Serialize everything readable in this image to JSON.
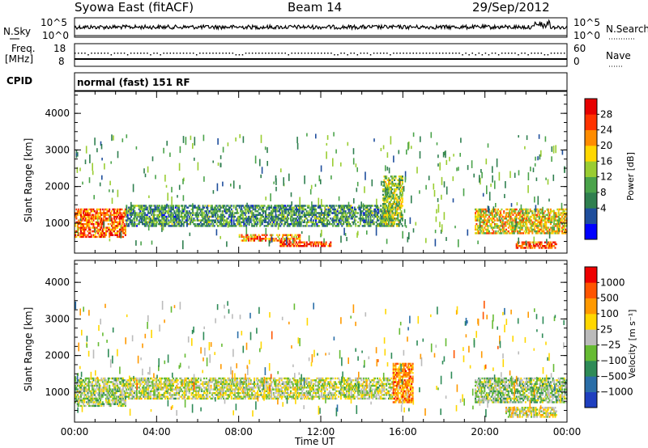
{
  "header": {
    "station": "Syowa East (fitACF)",
    "beam": "Beam 14",
    "date": "29/Sep/2012"
  },
  "top_panel": {
    "left_label": "N.Sky",
    "right_label": "N.Search",
    "left_ticks": [
      "10^5",
      "10^0"
    ],
    "right_ticks": [
      "10^5",
      "10^0"
    ]
  },
  "freq_panel": {
    "left_label_line1": "Freq.",
    "left_label_line2": "[MHz]",
    "right_label": "Nave",
    "left_ticks": [
      "18",
      "8"
    ],
    "right_ticks": [
      "60",
      "0"
    ]
  },
  "cpid": {
    "label": "CPID",
    "value": "normal (fast) 151 RF"
  },
  "power_panel": {
    "ylabel": "Slant Range [km]",
    "yticks": [
      "4000",
      "3000",
      "2000",
      "1000"
    ],
    "colorbar_label": "Power [dB]",
    "colorbar_ticks": [
      "28",
      "24",
      "20",
      "16",
      "12",
      "8",
      "4"
    ],
    "colors": [
      "#0000ff",
      "#1f4e9c",
      "#2f7f4f",
      "#4aa34a",
      "#9acd32",
      "#ffd700",
      "#ff8c00",
      "#ff3300",
      "#e60000"
    ]
  },
  "velocity_panel": {
    "ylabel": "Slant Range [km]",
    "yticks": [
      "4000",
      "3000",
      "2000",
      "1000"
    ],
    "colorbar_label": "Velocity [m s⁻¹]",
    "colorbar_ticks": [
      "1000",
      "500",
      "100",
      "25",
      "−25",
      "−100",
      "−500",
      "−1000"
    ],
    "colors": [
      "#1f3fbf",
      "#2a6ea8",
      "#2e8b57",
      "#66bb33",
      "#bbbbbb",
      "#ffd700",
      "#ff9900",
      "#ff5500",
      "#ee0000"
    ]
  },
  "x_axis": {
    "label": "Time UT",
    "ticks": [
      "00:00",
      "04:00",
      "08:00",
      "12:00",
      "16:00",
      "20:00",
      "00:00"
    ]
  },
  "chart_data": {
    "type": "heatmap",
    "title": "Syowa East (fitACF)",
    "xlabel": "Time UT",
    "ylabel": "Slant Range [km]",
    "xlim_hours": [
      0,
      24
    ],
    "ylim_km": [
      180,
      4600
    ],
    "panels": [
      {
        "name": "Power",
        "unit": "dB",
        "colorbar_range": [
          0,
          30
        ],
        "regions": [
          {
            "t_start": 0,
            "t_end": 2.5,
            "r_start": 600,
            "r_end": 1400,
            "value": 24
          },
          {
            "t_start": 2.5,
            "t_end": 15.5,
            "r_start": 900,
            "r_end": 1500,
            "value": 10
          },
          {
            "t_start": 8,
            "t_end": 11,
            "r_start": 500,
            "r_end": 700,
            "value": 22
          },
          {
            "t_start": 10,
            "t_end": 12.5,
            "r_start": 350,
            "r_end": 500,
            "value": 26
          },
          {
            "t_start": 15,
            "t_end": 16,
            "r_start": 900,
            "r_end": 2300,
            "value": 14
          },
          {
            "t_start": 19.5,
            "t_end": 24,
            "r_start": 700,
            "r_end": 1400,
            "value": 18
          },
          {
            "t_start": 21.5,
            "t_end": 23.5,
            "r_start": 300,
            "r_end": 500,
            "value": 26
          }
        ]
      },
      {
        "name": "Velocity",
        "unit": "m/s",
        "colorbar_range": [
          -1000,
          1000
        ],
        "regions": [
          {
            "t_start": 0,
            "t_end": 2.5,
            "r_start": 600,
            "r_end": 1400,
            "value": -100
          },
          {
            "t_start": 2.5,
            "t_end": 15.5,
            "r_start": 800,
            "r_end": 1400,
            "value": 0
          },
          {
            "t_start": 15.5,
            "t_end": 16.5,
            "r_start": 700,
            "r_end": 1800,
            "value": 500
          },
          {
            "t_start": 19.5,
            "t_end": 24,
            "r_start": 700,
            "r_end": 1400,
            "value": -150
          },
          {
            "t_start": 21,
            "t_end": 23.5,
            "r_start": 300,
            "r_end": 600,
            "value": 100
          }
        ]
      }
    ]
  }
}
